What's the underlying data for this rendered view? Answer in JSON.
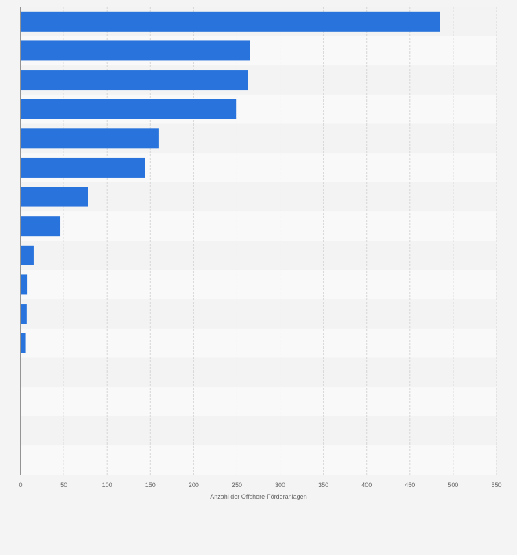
{
  "colors": {
    "bar": "#2874dc",
    "band_light": "#f9f9f9",
    "band_dark": "#f3f3f3",
    "grid": "#d5d5d5",
    "axis": "#333333"
  },
  "chart_data": {
    "type": "bar",
    "orientation": "horizontal",
    "title": "",
    "xlabel": "Anzahl der Offshore-Förderanlagen",
    "ylabel": "",
    "xlim": [
      0,
      550
    ],
    "xticks": [
      0,
      50,
      100,
      150,
      200,
      250,
      300,
      350,
      400,
      450,
      500,
      550
    ],
    "xtick_labels": [
      "0",
      "50",
      "100",
      "150",
      "200",
      "250",
      "300",
      "350",
      "400",
      "450",
      "500",
      "550"
    ],
    "grid": true,
    "series": [
      {
        "name": "Anzahl der Offshore-Förderanlagen",
        "values": [
          485,
          265,
          263,
          249,
          160,
          144,
          78,
          46,
          15,
          8,
          7,
          6,
          0,
          0,
          0,
          0
        ]
      }
    ]
  }
}
